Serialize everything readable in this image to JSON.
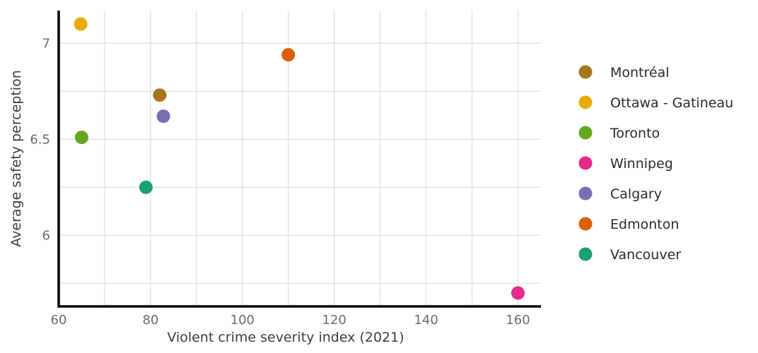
{
  "chart_data": {
    "type": "scatter",
    "xlabel": "Violent crime severity index (2021)",
    "ylabel": "Average safety perception",
    "xlim": [
      60,
      165
    ],
    "ylim": [
      5.63,
      7.17
    ],
    "xticks": [
      60,
      70,
      80,
      90,
      100,
      110,
      120,
      130,
      140,
      150,
      160
    ],
    "xtick_labels": [
      "60",
      "",
      "80",
      "",
      "100",
      "",
      "120",
      "",
      "140",
      "",
      "160"
    ],
    "yticks": [
      6,
      6.5,
      7
    ],
    "ytick_labels": [
      "6",
      "6.5",
      "7"
    ],
    "y_minor_gridlines": [
      5.75,
      6.25,
      6.75
    ],
    "grid": true,
    "legend_position": "right",
    "series": [
      {
        "name": "Montréal",
        "color": "#a6761d",
        "points": [
          {
            "x": 82,
            "y": 6.73
          }
        ]
      },
      {
        "name": "Ottawa - Gatineau",
        "color": "#e6ab02",
        "points": [
          {
            "x": 64.8,
            "y": 7.1
          }
        ]
      },
      {
        "name": "Toronto",
        "color": "#66a61e",
        "points": [
          {
            "x": 65,
            "y": 6.51
          }
        ]
      },
      {
        "name": "Winnipeg",
        "color": "#e7298a",
        "points": [
          {
            "x": 160,
            "y": 5.7
          }
        ]
      },
      {
        "name": "Calgary",
        "color": "#7570b3",
        "points": [
          {
            "x": 82.8,
            "y": 6.62
          }
        ]
      },
      {
        "name": "Edmonton",
        "color": "#d95f02",
        "points": [
          {
            "x": 110,
            "y": 6.94
          }
        ]
      },
      {
        "name": "Vancouver",
        "color": "#1b9e77",
        "points": [
          {
            "x": 79,
            "y": 6.25
          }
        ]
      }
    ]
  }
}
